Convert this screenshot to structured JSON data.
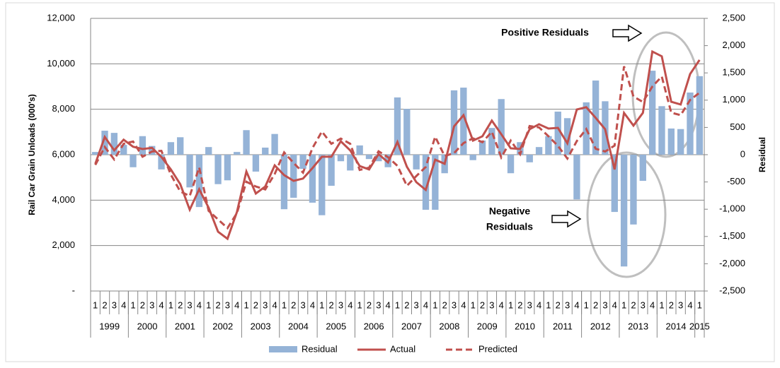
{
  "chart_data": {
    "type": "combo",
    "y_label": "Rail Car Grain Unloads (000's)",
    "y2_label": "Residual",
    "categories": [
      "1",
      "2",
      "3",
      "4",
      "1",
      "2",
      "3",
      "4",
      "1",
      "2",
      "3",
      "4",
      "1",
      "2",
      "3",
      "4",
      "1",
      "2",
      "3",
      "4",
      "1",
      "2",
      "3",
      "4",
      "1",
      "2",
      "3",
      "4",
      "1",
      "2",
      "3",
      "4",
      "1",
      "2",
      "3",
      "4",
      "1",
      "2",
      "3",
      "4",
      "1",
      "2",
      "3",
      "4",
      "1",
      "2",
      "3",
      "4",
      "1",
      "2",
      "3",
      "4",
      "1",
      "2",
      "3",
      "4",
      "1",
      "2",
      "3",
      "4",
      "1",
      "2",
      "3",
      "4",
      "1"
    ],
    "years": [
      "1999",
      "2000",
      "2001",
      "2002",
      "2003",
      "2004",
      "2005",
      "2006",
      "2007",
      "2008",
      "2009",
      "2010",
      "2011",
      "2012",
      "2013",
      "2014",
      "2015"
    ],
    "ylim": [
      0,
      12000
    ],
    "yticks": [
      {
        "value": 0,
        "label": "-"
      },
      {
        "value": 2000,
        "label": "2,000"
      },
      {
        "value": 4000,
        "label": "4,000"
      },
      {
        "value": 6000,
        "label": "6,000"
      },
      {
        "value": 8000,
        "label": "8,000"
      },
      {
        "value": 10000,
        "label": "10,000"
      },
      {
        "value": 12000,
        "label": "12,000"
      }
    ],
    "y2lim": [
      -2500,
      2500
    ],
    "y2ticks": [
      {
        "value": -2500,
        "label": "-2,500"
      },
      {
        "value": -2000,
        "label": "-2,000"
      },
      {
        "value": -1500,
        "label": "-1,500"
      },
      {
        "value": -1000,
        "label": "-1,000"
      },
      -500,
      0,
      500,
      {
        "value": 1000,
        "label": "1,000"
      },
      {
        "value": 1500,
        "label": "1,500"
      },
      {
        "value": 2000,
        "label": "2,000"
      },
      {
        "value": 2500,
        "label": "2,500"
      }
    ],
    "grid": true,
    "series": [
      {
        "name": "Residual",
        "type": "bar",
        "axis": "y2",
        "color": "#95b3d7",
        "values": [
          50,
          440,
          400,
          180,
          -230,
          340,
          160,
          -270,
          230,
          320,
          -600,
          -960,
          140,
          -540,
          -470,
          50,
          450,
          -310,
          130,
          380,
          -1000,
          -790,
          -260,
          -880,
          -1110,
          -570,
          -120,
          -290,
          170,
          -80,
          -120,
          -230,
          1050,
          840,
          -270,
          -1010,
          -1010,
          -340,
          1180,
          1230,
          -100,
          260,
          490,
          1020,
          -340,
          230,
          -140,
          140,
          340,
          790,
          670,
          -820,
          960,
          1360,
          980,
          -1050,
          -2050,
          -1280,
          -480,
          1540,
          890,
          480,
          470,
          1140,
          1440
        ]
      },
      {
        "name": "Actual",
        "type": "line",
        "color": "#c0504d",
        "dashed": false,
        "values": [
          5600,
          6780,
          6190,
          6660,
          6350,
          6250,
          6300,
          5900,
          5350,
          4700,
          3580,
          4480,
          3670,
          2610,
          2300,
          3480,
          5260,
          4290,
          4600,
          5530,
          5100,
          4850,
          4950,
          5410,
          5910,
          5910,
          6590,
          6190,
          5500,
          5350,
          6030,
          5660,
          6560,
          5470,
          4790,
          4450,
          5780,
          5600,
          7250,
          7740,
          6620,
          6810,
          7500,
          6900,
          6280,
          6250,
          7120,
          7340,
          7150,
          7180,
          6500,
          7990,
          8090,
          7620,
          7120,
          5350,
          7840,
          7280,
          7840,
          10540,
          10330,
          8330,
          8210,
          9550,
          10170
        ]
      },
      {
        "name": "Predicted",
        "type": "line",
        "color": "#c0504d",
        "dashed": true,
        "values": [
          5550,
          6340,
          5790,
          6480,
          6580,
          5910,
          6140,
          6170,
          5120,
          4380,
          4180,
          5440,
          3530,
          3150,
          2770,
          3430,
          4810,
          4600,
          4470,
          5150,
          6100,
          5640,
          5210,
          6290,
          7020,
          6480,
          6710,
          6480,
          5330,
          5430,
          6150,
          5890,
          5510,
          4630,
          5060,
          5460,
          6790,
          5940,
          6070,
          6510,
          6720,
          6550,
          7010,
          5880,
          6620,
          6020,
          7260,
          7200,
          6810,
          6390,
          5830,
          6600,
          7130,
          6260,
          6140,
          6400,
          9890,
          8560,
          8320,
          9000,
          9440,
          7850,
          7740,
          8410,
          8730
        ]
      }
    ],
    "annotations": [
      {
        "lines": [
          "Positive Residuals"
        ]
      },
      {
        "lines": [
          "Negative",
          "Residuals"
        ]
      }
    ]
  }
}
